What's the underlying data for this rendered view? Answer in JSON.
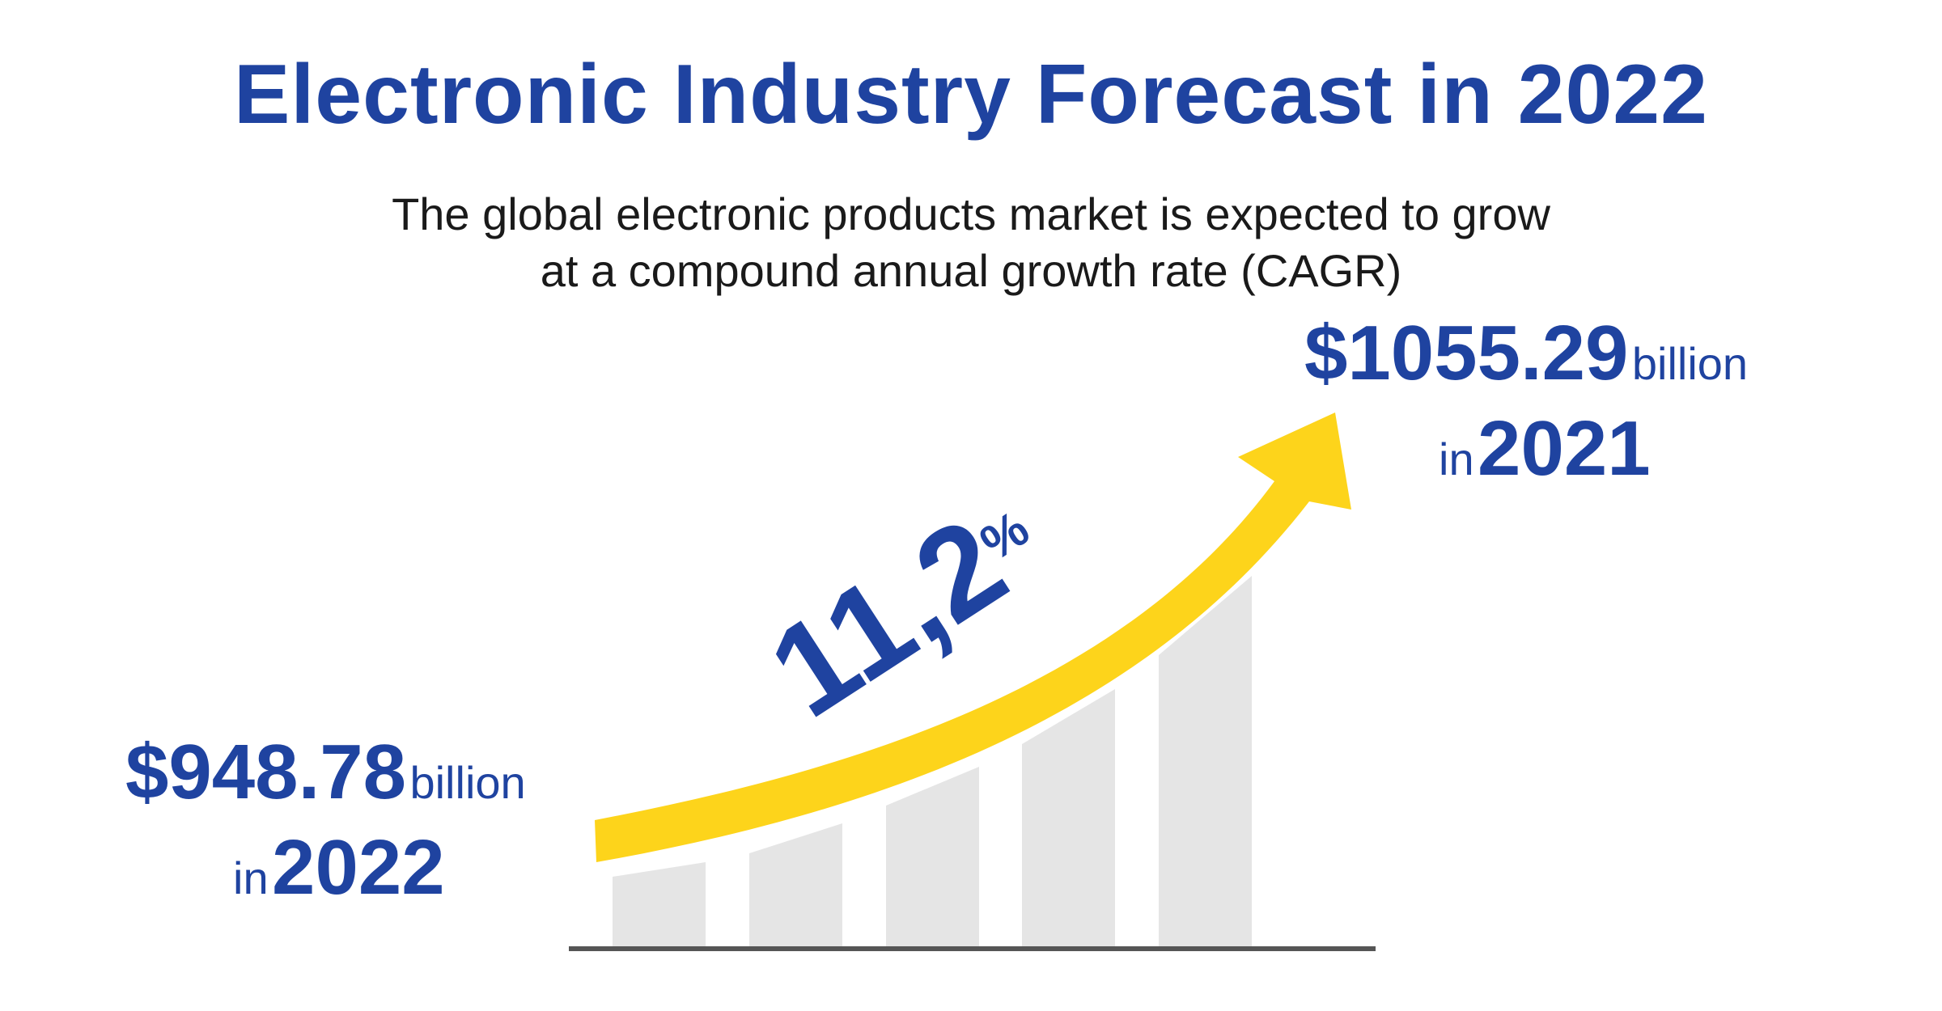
{
  "title": "Electronic Industry Forecast in 2022",
  "subtitle": {
    "line1": "The global electronic products market is expected to grow",
    "line2": "at a compound annual growth rate (CAGR)"
  },
  "start": {
    "amount": "$948.78",
    "unit": "billion",
    "prefix": "in",
    "year": "2022"
  },
  "end": {
    "amount": "$1055.29",
    "unit": "billion",
    "prefix": "in",
    "year": "2021"
  },
  "growth": {
    "number": "11,2",
    "symbol": "%"
  },
  "colors": {
    "brand_blue": "#1f43a0",
    "arrow_yellow": "#fdd41b",
    "bar_gray": "#e5e5e5",
    "baseline": "#555555"
  },
  "icon": "rising-arrow-bar-graph"
}
